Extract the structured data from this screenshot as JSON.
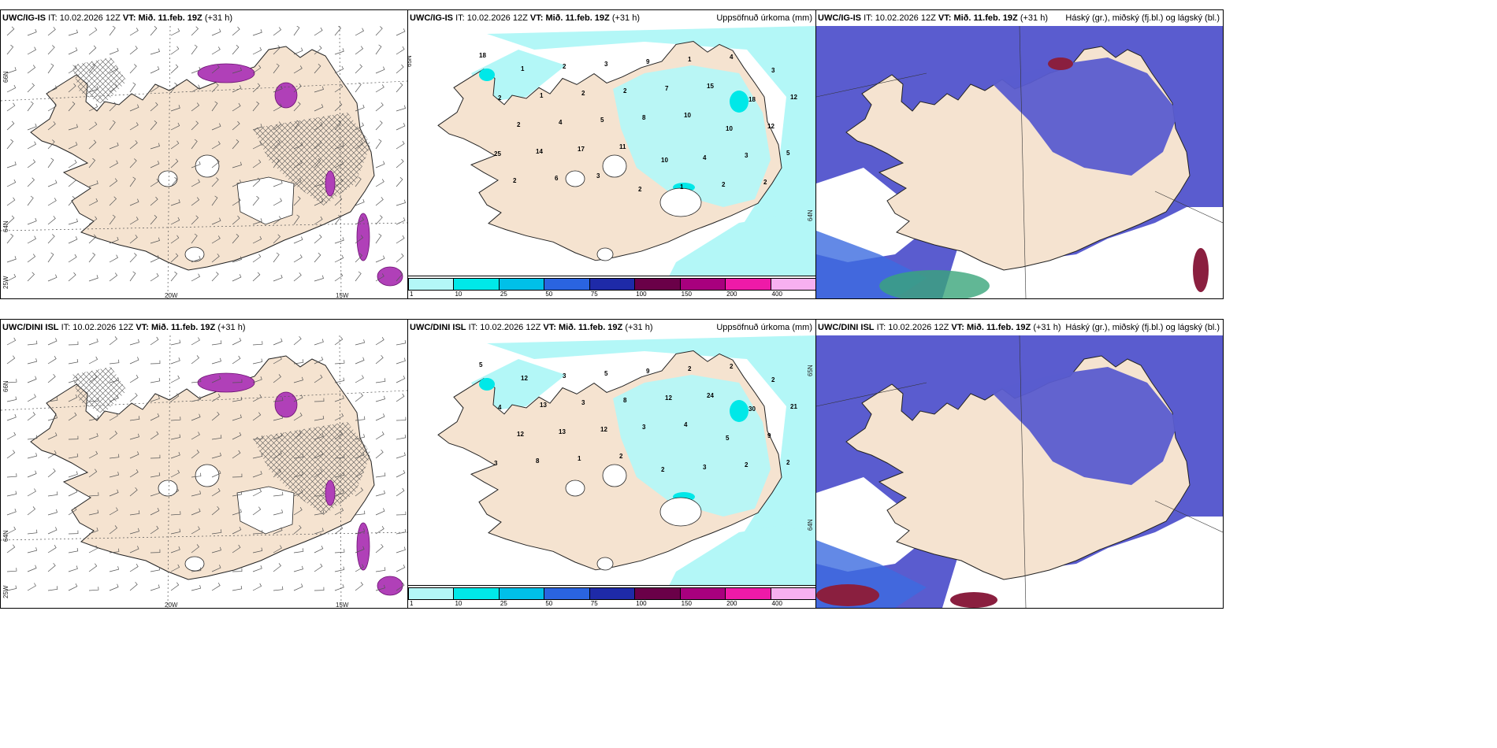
{
  "panels": [
    {
      "model": "UWC/IG-IS",
      "it": "10.02.2026 12Z",
      "vt": "Mið. 11.feb. 19Z",
      "lead": "(+31 h)",
      "right_title": ""
    },
    {
      "model": "UWC/IG-IS",
      "it": "10.02.2026 12Z",
      "vt": "Mið. 11.feb. 19Z",
      "lead": "(+31 h)",
      "right_title": "Uppsöfnuð úrkoma (mm)"
    },
    {
      "model": "UWC/IG-IS",
      "it": "10.02.2026 12Z",
      "vt": "Mið. 11.feb. 19Z",
      "lead": "(+31 h)",
      "right_title": "Háský (gr.), miðský (fj.bl.) og lágský (bl.)"
    },
    {
      "model": "UWC/DINI ISL",
      "it": "10.02.2026 12Z",
      "vt": "Mið. 11.feb. 19Z",
      "lead": "(+31 h)",
      "right_title": ""
    },
    {
      "model": "UWC/DINI ISL",
      "it": "10.02.2026 12Z",
      "vt": "Mið. 11.feb. 19Z",
      "lead": "(+31 h)",
      "right_title": "Uppsöfnuð úrkoma (mm)"
    },
    {
      "model": "UWC/DINI ISL",
      "it": "10.02.2026 12Z",
      "vt": "Mið. 11.feb. 19Z",
      "lead": "(+31 h)",
      "right_title": "Háský (gr.), miðský (fj.bl.) og lágský (bl.)"
    }
  ],
  "labels": {
    "it": "IT:",
    "vt": "VT:"
  },
  "axis_labels": {
    "lat66": "66N",
    "lat64": "64N",
    "lat65": "65N",
    "lon25": "25W",
    "lon20": "20W",
    "lon15": "15W"
  },
  "colorbar": {
    "ticks": [
      "1",
      "10",
      "25",
      "50",
      "75",
      "100",
      "150",
      "200",
      "400"
    ],
    "colors": [
      "#b3f7f7",
      "#00e8e8",
      "#00c0e8",
      "#2a64e0",
      "#1e2aa8",
      "#6a0048",
      "#a8007e",
      "#ee1aa8",
      "#f7b0f0"
    ]
  },
  "precip_top": [
    "18",
    "1",
    "2",
    "3",
    "9",
    "1",
    "4",
    "3",
    "2",
    "1",
    "2",
    "2",
    "7",
    "15",
    "18",
    "12",
    "2",
    "4",
    "5",
    "8",
    "10",
    "10",
    "12",
    "25",
    "14",
    "17",
    "11",
    "10",
    "4",
    "3",
    "5",
    "2",
    "6",
    "3",
    "2",
    "1",
    "2",
    "2"
  ],
  "precip_bottom": [
    "5",
    "12",
    "3",
    "5",
    "9",
    "2",
    "2",
    "2",
    "4",
    "13",
    "3",
    "8",
    "12",
    "24",
    "30",
    "21",
    "12",
    "13",
    "12",
    "3",
    "4",
    "5",
    "9",
    "3",
    "8",
    "1",
    "2",
    "2",
    "3",
    "2",
    "2"
  ],
  "colors": {
    "land": "#f5e3d0",
    "precip_light": "#b3f7f7",
    "precip_mid": "#00e8e8",
    "cloud_mid": "#5a5ccf",
    "cloud_low": "#3c6be0",
    "cloud_high": "#3aa57a",
    "cloud_dark": "#8a1f3f"
  }
}
